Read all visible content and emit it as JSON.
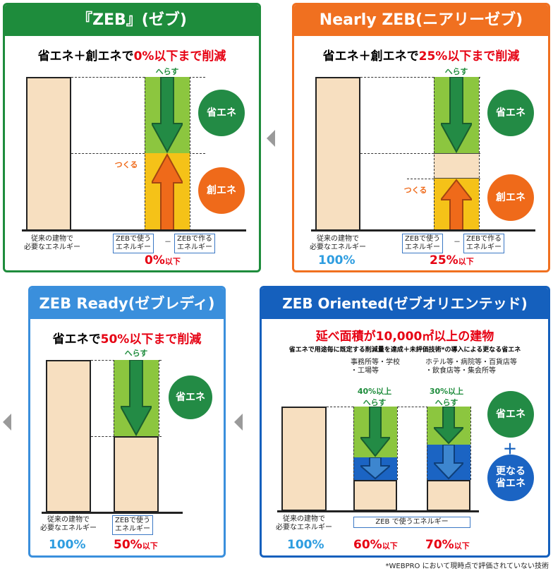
{
  "zeb": {
    "title": "『ZEB』(ゼブ)",
    "subtitle_prefix": "省エネ＋創エネで",
    "subtitle_highlight": "0%以下まで削減",
    "herasu": "へらす",
    "tsukuru": "つくる",
    "circle_shoene": "省エネ",
    "circle_souene": "創エネ",
    "label_conventional": "従来の建物で\n必要なエネルギー",
    "label_use": "ZEBで使う\nエネルギー",
    "minus": "－",
    "label_make": "ZEBで作る\nエネルギー",
    "pct_value": "0%",
    "pct_suffix": "以下",
    "color": "#1e8c3c"
  },
  "nearly": {
    "title": "Nearly ZEB(ニアリーゼブ)",
    "subtitle_prefix": "省エネ＋創エネで",
    "subtitle_highlight": "25%以下まで削減",
    "herasu": "へらす",
    "tsukuru": "つくる",
    "circle_shoene": "省エネ",
    "circle_souene": "創エネ",
    "label_conventional": "従来の建物で\n必要なエネルギー",
    "label_use": "ZEBで使う\nエネルギー",
    "minus": "－",
    "label_make": "ZEBで作る\nエネルギー",
    "pct_base": "100%",
    "pct_value": "25%",
    "pct_suffix": "以下",
    "color": "#f07020"
  },
  "ready": {
    "title": "ZEB Ready(ゼブレディ)",
    "subtitle_prefix": "省エネで",
    "subtitle_highlight": "50%以下まで削減",
    "herasu": "へらす",
    "circle_shoene": "省エネ",
    "label_conventional": "従来の建物で\n必要なエネルギー",
    "label_use": "ZEBで使う\nエネルギー",
    "pct_base": "100%",
    "pct_value": "50%",
    "pct_suffix": "以下",
    "color": "#3a8fdc"
  },
  "oriented": {
    "title": "ZEB Oriented(ゼブオリエンテッド)",
    "subtitle": "延べ面積が10,000㎡以上の建物",
    "note": "省エネで用途毎に既定する削減量を達成＋未評価技術*の導入による更なる省エネ",
    "group1": "事務所等・学校\n・工場等",
    "group2": "ホテル等・病院等・百貨店等\n・飲食店等・集会所等",
    "arrow1": "40%以上\nへらす",
    "arrow2": "30%以上\nへらす",
    "circle_shoene": "省エネ",
    "plus": "＋",
    "circle_more": "更なる\n省エネ",
    "label_conventional": "従来の建物で\n必要なエネルギー",
    "label_use": "ZEB で使うエネルギー",
    "pct_base": "100%",
    "pct1": "60%",
    "pct2": "70%",
    "pct_suffix": "以下",
    "color": "#1560bd"
  },
  "footnote": "*WEBPRO において現時点で評価されていない技術"
}
